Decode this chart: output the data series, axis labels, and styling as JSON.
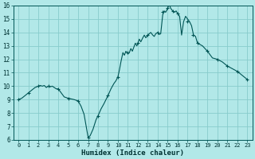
{
  "title": "",
  "xlabel": "Humidex (Indice chaleur)",
  "ylabel": "",
  "bg_color": "#b2e8e8",
  "grid_color": "#88cccc",
  "line_color": "#005555",
  "marker_color": "#005555",
  "xlim": [
    -0.5,
    23.5
  ],
  "ylim": [
    6,
    16
  ],
  "xticks": [
    0,
    1,
    2,
    3,
    4,
    5,
    6,
    7,
    8,
    9,
    10,
    11,
    12,
    13,
    14,
    15,
    16,
    17,
    18,
    19,
    20,
    21,
    22,
    23
  ],
  "yticks": [
    6,
    7,
    8,
    9,
    10,
    11,
    12,
    13,
    14,
    15,
    16
  ],
  "x": [
    0,
    0.33,
    0.67,
    1,
    1.33,
    1.67,
    2,
    2.2,
    2.4,
    2.6,
    2.8,
    3,
    3.2,
    3.4,
    3.6,
    3.8,
    4,
    4.3,
    4.6,
    5,
    5.3,
    5.6,
    6,
    6.3,
    6.6,
    7,
    7.2,
    7.5,
    7.8,
    8,
    8.3,
    8.6,
    9,
    9.3,
    9.6,
    9.8,
    10,
    10.15,
    10.3,
    10.5,
    10.65,
    10.8,
    11,
    11.15,
    11.3,
    11.45,
    11.6,
    11.75,
    11.9,
    12,
    12.15,
    12.3,
    12.5,
    12.65,
    12.8,
    13,
    13.15,
    13.3,
    13.5,
    13.65,
    13.8,
    14,
    14.15,
    14.3,
    14.5,
    14.65,
    14.8,
    15,
    15.15,
    15.3,
    15.5,
    15.7,
    15.85,
    16,
    16.2,
    16.4,
    16.6,
    16.8,
    17,
    17.2,
    17.4,
    17.6,
    17.8,
    18,
    18.5,
    19,
    19.5,
    20,
    20.5,
    21,
    21.5,
    22,
    22.5,
    23
  ],
  "y": [
    9.0,
    9.1,
    9.3,
    9.5,
    9.7,
    9.9,
    10.0,
    10.05,
    10.0,
    10.05,
    9.9,
    10.0,
    9.95,
    10.0,
    9.9,
    9.8,
    9.8,
    9.5,
    9.2,
    9.1,
    9.05,
    9.0,
    8.9,
    8.5,
    7.9,
    6.2,
    6.3,
    6.8,
    7.5,
    7.8,
    8.3,
    8.7,
    9.3,
    9.8,
    10.2,
    10.4,
    10.7,
    11.2,
    11.8,
    12.5,
    12.3,
    12.6,
    12.4,
    12.5,
    12.8,
    12.6,
    12.9,
    13.2,
    13.0,
    13.2,
    13.5,
    13.3,
    13.6,
    13.8,
    13.6,
    13.8,
    13.9,
    14.0,
    13.8,
    13.7,
    13.9,
    14.0,
    13.85,
    13.9,
    15.3,
    15.6,
    15.5,
    15.8,
    16.1,
    15.8,
    15.6,
    15.5,
    15.6,
    15.4,
    15.2,
    13.8,
    14.8,
    15.2,
    15.0,
    14.8,
    14.5,
    13.8,
    13.7,
    13.2,
    13.0,
    12.6,
    12.1,
    12.0,
    11.8,
    11.5,
    11.3,
    11.1,
    10.8,
    10.5
  ],
  "marker_x": [
    0,
    1,
    2,
    3,
    4,
    5,
    6,
    7,
    8,
    9,
    10,
    11,
    12,
    13,
    14,
    14.5,
    15,
    15.5,
    16,
    17,
    17.5,
    18,
    19,
    20,
    21,
    22,
    23
  ],
  "marker_y": [
    9.0,
    9.5,
    10.0,
    10.0,
    9.8,
    9.1,
    8.9,
    6.2,
    7.8,
    9.3,
    10.7,
    12.5,
    13.2,
    13.8,
    14.0,
    15.5,
    15.8,
    15.6,
    15.4,
    14.8,
    13.8,
    13.2,
    12.6,
    12.0,
    11.5,
    11.1,
    10.5
  ]
}
